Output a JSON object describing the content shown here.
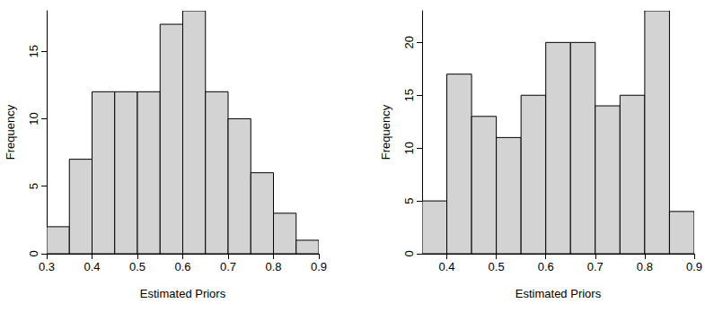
{
  "chart_data": [
    {
      "type": "histogram",
      "x_label": "Estimated Priors",
      "y_label": "Frequency",
      "bins": [
        0.3,
        0.35,
        0.4,
        0.45,
        0.5,
        0.55,
        0.6,
        0.65,
        0.7,
        0.75,
        0.8,
        0.85,
        0.9
      ],
      "values": [
        2,
        7,
        12,
        12,
        12,
        17,
        18,
        12,
        10,
        6,
        3,
        1
      ],
      "color": "#d3d3d3",
      "xlim": [
        0.3,
        0.9
      ],
      "xticks": [
        0.3,
        0.4,
        0.5,
        0.6,
        0.7,
        0.8,
        0.9
      ],
      "ylim": [
        0,
        18
      ],
      "yticks": [
        0,
        5,
        10,
        15
      ],
      "grid": false
    },
    {
      "type": "histogram",
      "x_label": "Estimated Priors",
      "y_label": "Frequency",
      "bins": [
        0.35,
        0.4,
        0.45,
        0.5,
        0.55,
        0.6,
        0.65,
        0.7,
        0.75,
        0.8,
        0.85,
        0.9
      ],
      "values": [
        5,
        17,
        13,
        11,
        15,
        20,
        20,
        14,
        15,
        23,
        4
      ],
      "color": "#d3d3d3",
      "xlim": [
        0.35,
        0.9
      ],
      "xticks": [
        0.4,
        0.5,
        0.6,
        0.7,
        0.8,
        0.9
      ],
      "ylim": [
        0,
        23
      ],
      "yticks": [
        0,
        5,
        10,
        15,
        20
      ],
      "grid": false
    }
  ]
}
